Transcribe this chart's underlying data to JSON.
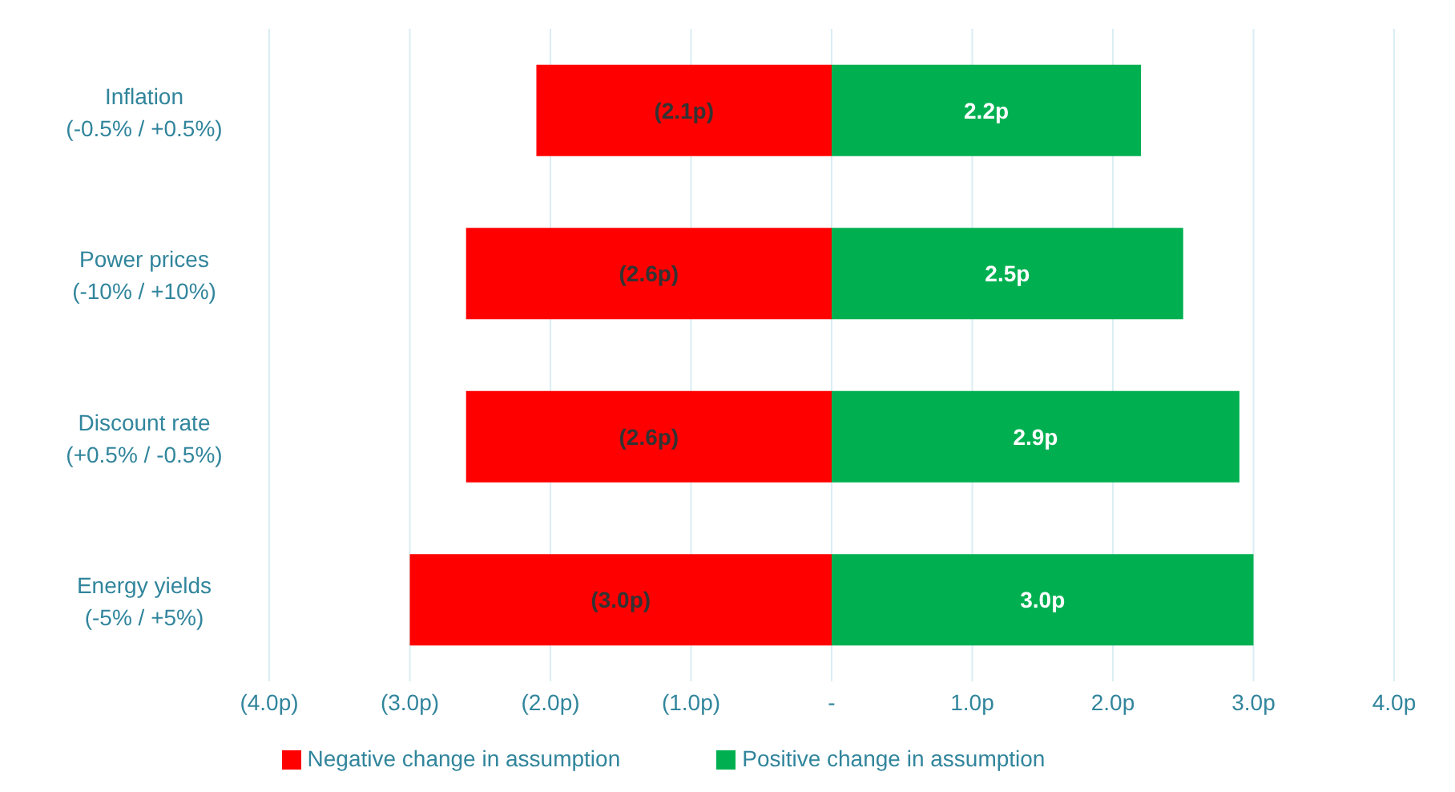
{
  "chart_data": {
    "type": "bar",
    "orientation": "horizontal",
    "stacked": true,
    "categories": [
      "Inflation\n(-0.5% / +0.5%)",
      "Power prices\n(-10% / +10%)",
      "Discount rate\n(+0.5% / -0.5%)",
      "Energy yields\n(-5% / +5%)"
    ],
    "series": [
      {
        "name": "Negative change in assumption",
        "color": "#ff0000",
        "values": [
          -2.1,
          -2.6,
          -2.6,
          -3.0
        ],
        "value_labels": [
          "(2.1p)",
          "(2.6p)",
          "(2.6p)",
          "(3.0p)"
        ]
      },
      {
        "name": "Positive change in assumption",
        "color": "#00b050",
        "values": [
          2.2,
          2.5,
          2.9,
          3.0
        ],
        "value_labels": [
          "2.2p",
          "2.5p",
          "2.9p",
          "3.0p"
        ]
      }
    ],
    "xlim": [
      -4,
      4
    ],
    "xticks": [
      {
        "value": -4,
        "label": "(4.0p)"
      },
      {
        "value": -3,
        "label": "(3.0p)"
      },
      {
        "value": -2,
        "label": "(2.0p)"
      },
      {
        "value": -1,
        "label": "(1.0p)"
      },
      {
        "value": 0,
        "label": "-"
      },
      {
        "value": 1,
        "label": "1.0p"
      },
      {
        "value": 2,
        "label": "2.0p"
      },
      {
        "value": 3,
        "label": "3.0p"
      },
      {
        "value": 4,
        "label": "4.0p"
      }
    ],
    "grid": "x",
    "legend": "bottom"
  }
}
